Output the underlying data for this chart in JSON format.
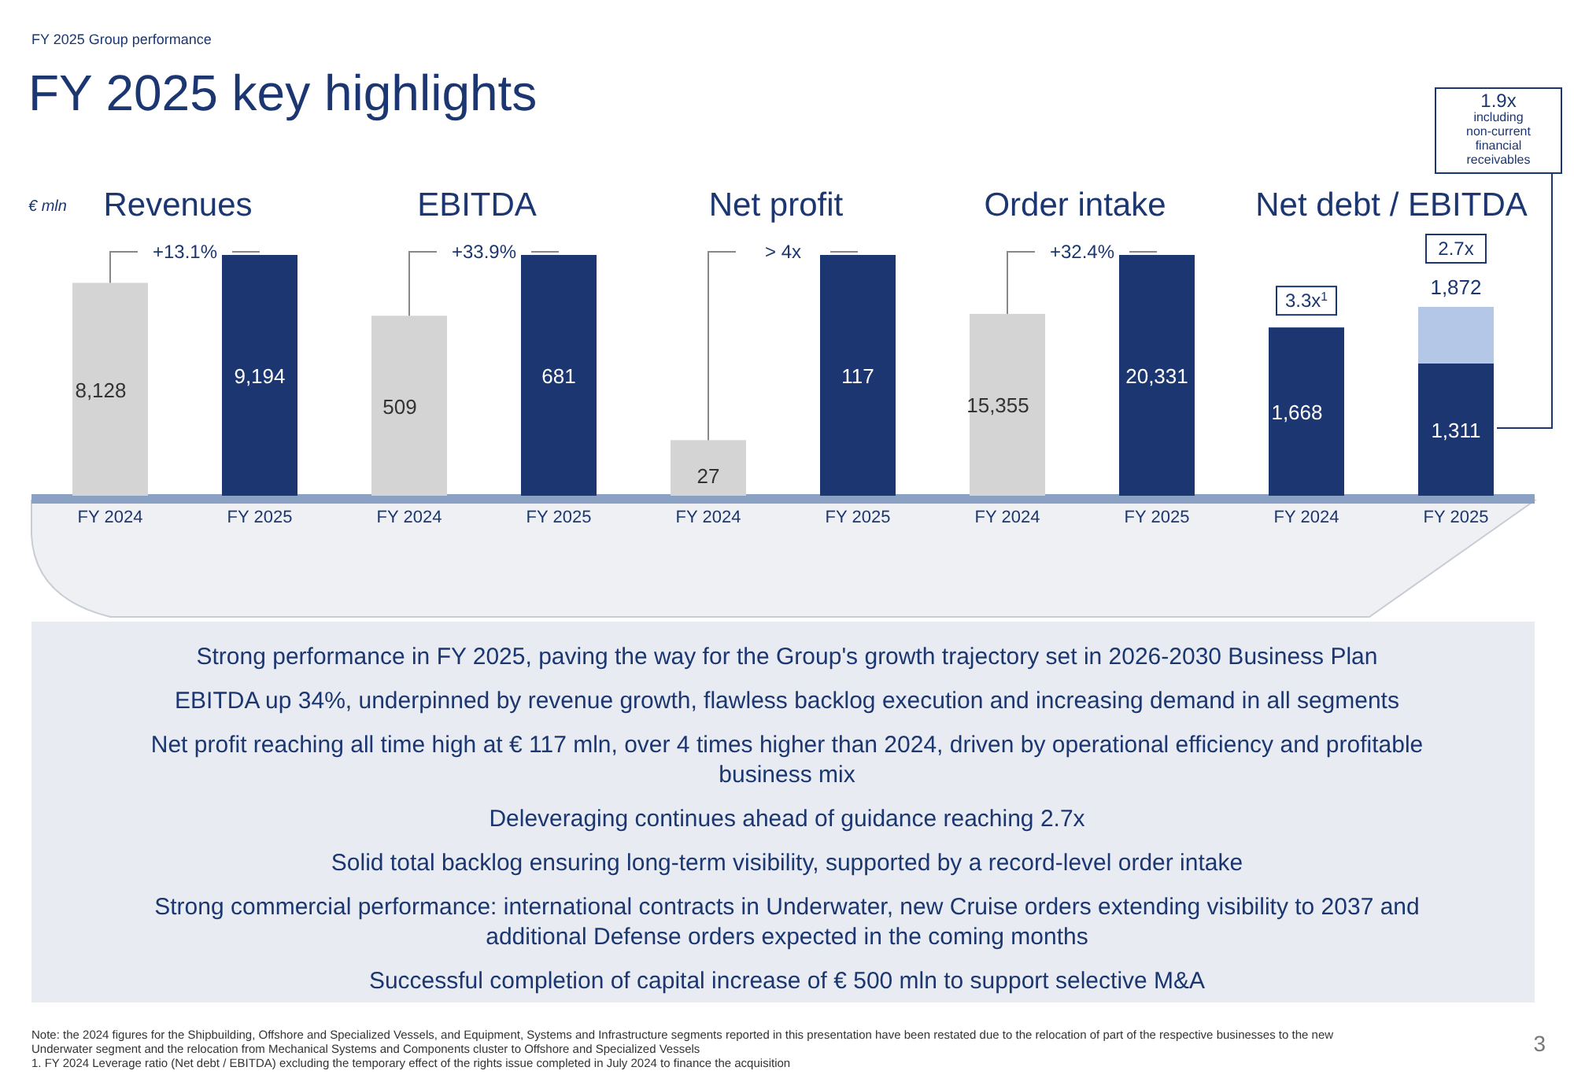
{
  "chart_data": [
    {
      "type": "other",
      "title": "FY 2025 key highlights",
      "subtitle": "FY 2025 Group performance",
      "annotations": [
        "Strong performance in FY 2025, paving the way for the Group's growth trajectory set in 2026-2030 Business Plan",
        "EBITDA up 34%, underpinned by revenue growth, flawless backlog execution and increasing demand in all segments",
        "Net profit reaching all time high at € 117 mln, over 4 times higher than 2024, driven by operational efficiency and profitable business mix",
        "Deleveraging continues ahead of guidance reaching 2.7x",
        "Solid total backlog ensuring long-term visibility, supported by a record-level order intake",
        "Strong commercial performance: international contracts in Underwater, new Cruise orders extending visibility to 2037 and additional Defense orders expected in the coming months",
        "Successful completion of capital increase of € 500 mln to support selective M&A",
        "Note: the 2024 figures for the Shipbuilding, Offshore and Specialized Vessels, and Equipment, Systems and Infrastructure segments reported in this presentation have been restated due to the relocation of part of the respective businesses to the new Underwater segment and the relocation from Mechanical Systems and Components cluster to Offshore and Specialized Vessels",
        "1.  FY 2024 Leverage ratio (Net debt / EBITDA) excluding the temporary effect of the rights issue completed in July 2024 to finance the acquisition",
        "3"
      ]
    },
    {
      "type": "bar",
      "title": "Revenues",
      "ylabel": "€ mln",
      "categories": [
        "FY 2024",
        "FY 2025"
      ],
      "values": [
        8128,
        9194
      ],
      "colors": [
        "#d4d4d4",
        "#1b3670"
      ],
      "value_labels": [
        "8,128",
        "9,194"
      ],
      "annotations": [
        "+13.1%"
      ]
    },
    {
      "type": "bar",
      "title": "EBITDA",
      "categories": [
        "FY 2024",
        "FY 2025"
      ],
      "values": [
        509,
        681
      ],
      "colors": [
        "#d4d4d4",
        "#1b3670"
      ],
      "value_labels": [
        "509",
        "681"
      ],
      "annotations": [
        "+33.9%"
      ]
    },
    {
      "type": "bar",
      "title": "Net profit",
      "categories": [
        "FY 2024",
        "FY 2025"
      ],
      "values": [
        27,
        117
      ],
      "colors": [
        "#d4d4d4",
        "#1b3670"
      ],
      "value_labels": [
        "27",
        "117"
      ],
      "annotations": [
        "> 4x"
      ]
    },
    {
      "type": "bar",
      "title": "Order intake",
      "categories": [
        "FY 2024",
        "FY 2025"
      ],
      "values": [
        15355,
        20331
      ],
      "colors": [
        "#d4d4d4",
        "#1b3670"
      ],
      "value_labels": [
        "15,355",
        "20,331"
      ],
      "annotations": [
        "+32.4%"
      ]
    },
    {
      "type": "bar",
      "title": "Net debt / EBITDA",
      "stacked": true,
      "categories": [
        "FY 2024",
        "FY 2025"
      ],
      "series": [
        {
          "color": "#1b3670",
          "values": [
            1668,
            1311
          ],
          "value_labels": [
            "1,668",
            "1,311"
          ]
        },
        {
          "color": "#b4c7e7",
          "values": [
            null,
            561
          ],
          "value_labels": [
            null,
            null
          ]
        }
      ],
      "totals": [
        null,
        "1,872"
      ],
      "annotations": [
        "3.3x$^{1}$",
        "2.7x",
        "1.9x including non-current financial receivables"
      ]
    }
  ]
}
